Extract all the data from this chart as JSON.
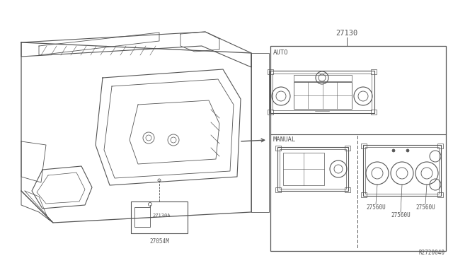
{
  "bg_color": "#ffffff",
  "line_color": "#555555",
  "title_label": "27130",
  "auto_label": "AUTO",
  "manual_label": "MANUAL",
  "label_27130A": "27130A",
  "label_27054M": "27054M",
  "label_27560U_1": "27560U",
  "label_27560U_2": "27560U",
  "label_27560U_3": "27560U",
  "watermark": "R2720040"
}
